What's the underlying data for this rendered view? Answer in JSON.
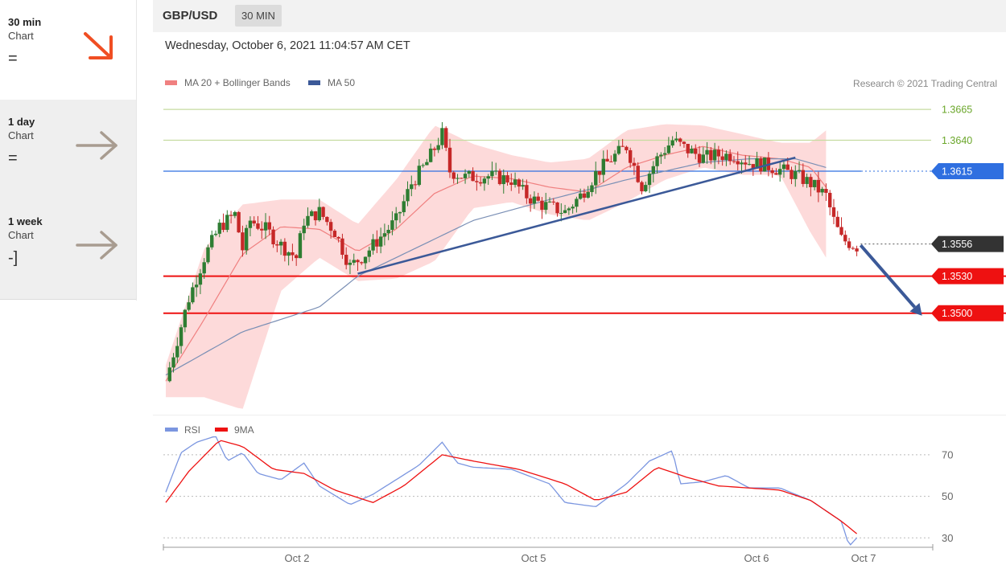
{
  "sidebar": {
    "timeframes": [
      {
        "label": "30 min",
        "sub": "Chart",
        "symbol": "=",
        "arrow": "down-right-arrow-icon",
        "arrow_color": "#f04e23"
      },
      {
        "label": "1 day",
        "sub": "Chart",
        "symbol": "=",
        "arrow": "right-arrow-icon",
        "arrow_color": "#a89c90"
      },
      {
        "label": "1 week",
        "sub": "Chart",
        "symbol": "-]",
        "arrow": "right-arrow-icon",
        "arrow_color": "#a89c90"
      }
    ]
  },
  "header": {
    "pair": "GBP/USD",
    "timeframe": "30 MIN",
    "datetime": "Wednesday, October 6, 2021 11:04:57 AM CET"
  },
  "colors": {
    "up_candle": "#2e7d32",
    "down_candle": "#c62828",
    "bb_fill": "#fdd6d6",
    "ma20": "#f08080",
    "ma50": "#7a8fb5",
    "trendline": "#3b5998",
    "support": "#ee1111",
    "current": "#333333",
    "resistance_green": "#c6dca0",
    "pivot_blue": "#2f6fe0",
    "rsi": "#7b96e0",
    "rsi_ma": "#ee1111"
  },
  "chart_data": [
    {
      "type": "candlestick",
      "title": "GBP/USD 30 MIN",
      "legend": [
        {
          "name": "MA 20 + Bollinger Bands",
          "color": "#f08080"
        },
        {
          "name": "MA 50",
          "color": "#3b5998"
        }
      ],
      "credit": "Research © 2021 Trading Central",
      "x_labels": [
        "Oct 2",
        "Oct 5",
        "Oct 6",
        "Oct 7"
      ],
      "ylim": [
        1.3425,
        1.3695
      ],
      "levels": [
        {
          "label": "1.3665",
          "value": 1.3665,
          "style": "resistance_green",
          "boxed": false
        },
        {
          "label": "1.3640",
          "value": 1.364,
          "style": "resistance_green",
          "boxed": false
        },
        {
          "label": "1.3615",
          "value": 1.3615,
          "style": "pivot_blue",
          "boxed": true
        },
        {
          "label": "1.3556",
          "value": 1.3556,
          "style": "current",
          "boxed": true
        },
        {
          "label": "1.3530",
          "value": 1.353,
          "style": "support",
          "boxed": true
        },
        {
          "label": "1.3500",
          "value": 1.35,
          "style": "support",
          "boxed": true
        }
      ],
      "trendline": {
        "from": [
          0.25,
          1.3532
        ],
        "to": [
          0.82,
          1.3626
        ]
      },
      "forecast_arrow": {
        "from": [
          0.905,
          1.3555
        ],
        "to": [
          0.985,
          1.3498
        ]
      },
      "close_path": [
        [
          0.0,
          1.3445
        ],
        [
          0.03,
          1.3512
        ],
        [
          0.05,
          1.3545
        ],
        [
          0.07,
          1.357
        ],
        [
          0.09,
          1.358
        ],
        [
          0.1,
          1.3552
        ],
        [
          0.11,
          1.3575
        ],
        [
          0.13,
          1.3568
        ],
        [
          0.15,
          1.3555
        ],
        [
          0.17,
          1.3545
        ],
        [
          0.18,
          1.3575
        ],
        [
          0.2,
          1.3582
        ],
        [
          0.22,
          1.3566
        ],
        [
          0.24,
          1.3538
        ],
        [
          0.26,
          1.3548
        ],
        [
          0.28,
          1.3562
        ],
        [
          0.3,
          1.3575
        ],
        [
          0.32,
          1.3605
        ],
        [
          0.34,
          1.3622
        ],
        [
          0.36,
          1.3645
        ],
        [
          0.37,
          1.3615
        ],
        [
          0.39,
          1.361
        ],
        [
          0.42,
          1.3611
        ],
        [
          0.45,
          1.3608
        ],
        [
          0.47,
          1.3595
        ],
        [
          0.49,
          1.3588
        ],
        [
          0.52,
          1.3582
        ],
        [
          0.54,
          1.3595
        ],
        [
          0.56,
          1.3613
        ],
        [
          0.58,
          1.3625
        ],
        [
          0.6,
          1.3635
        ],
        [
          0.62,
          1.3603
        ],
        [
          0.64,
          1.3625
        ],
        [
          0.66,
          1.364
        ],
        [
          0.68,
          1.3632
        ],
        [
          0.7,
          1.3626
        ],
        [
          0.72,
          1.3628
        ],
        [
          0.74,
          1.3628
        ],
        [
          0.76,
          1.3622
        ],
        [
          0.78,
          1.362
        ],
        [
          0.8,
          1.3616
        ],
        [
          0.82,
          1.3612
        ],
        [
          0.84,
          1.3605
        ],
        [
          0.86,
          1.3595
        ],
        [
          0.87,
          1.3575
        ],
        [
          0.88,
          1.356
        ],
        [
          0.9,
          1.3554
        ]
      ],
      "ma50_path": [
        [
          0.0,
          1.345
        ],
        [
          0.1,
          1.3485
        ],
        [
          0.2,
          1.3505
        ],
        [
          0.25,
          1.353
        ],
        [
          0.3,
          1.3545
        ],
        [
          0.4,
          1.3575
        ],
        [
          0.5,
          1.3592
        ],
        [
          0.6,
          1.3608
        ],
        [
          0.7,
          1.3622
        ],
        [
          0.76,
          1.3625
        ],
        [
          0.82,
          1.3625
        ],
        [
          0.86,
          1.3618
        ]
      ],
      "ma20_path": [
        [
          0.0,
          1.3445
        ],
        [
          0.05,
          1.3495
        ],
        [
          0.1,
          1.3548
        ],
        [
          0.15,
          1.357
        ],
        [
          0.2,
          1.3568
        ],
        [
          0.25,
          1.355
        ],
        [
          0.3,
          1.3568
        ],
        [
          0.35,
          1.3597
        ],
        [
          0.4,
          1.3611
        ],
        [
          0.45,
          1.3609
        ],
        [
          0.5,
          1.3602
        ],
        [
          0.55,
          1.3598
        ],
        [
          0.6,
          1.3618
        ],
        [
          0.65,
          1.3628
        ],
        [
          0.7,
          1.3635
        ],
        [
          0.75,
          1.3628
        ],
        [
          0.8,
          1.3625
        ],
        [
          0.84,
          1.3618
        ],
        [
          0.86,
          1.3602
        ]
      ],
      "bb_upper_path": [
        [
          0.0,
          1.3458
        ],
        [
          0.05,
          1.3552
        ],
        [
          0.1,
          1.3588
        ],
        [
          0.15,
          1.3592
        ],
        [
          0.2,
          1.3592
        ],
        [
          0.25,
          1.3572
        ],
        [
          0.3,
          1.3608
        ],
        [
          0.35,
          1.3652
        ],
        [
          0.4,
          1.3637
        ],
        [
          0.45,
          1.3628
        ],
        [
          0.5,
          1.3622
        ],
        [
          0.55,
          1.3625
        ],
        [
          0.6,
          1.3648
        ],
        [
          0.65,
          1.3653
        ],
        [
          0.7,
          1.3652
        ],
        [
          0.75,
          1.3645
        ],
        [
          0.8,
          1.3638
        ],
        [
          0.84,
          1.3638
        ],
        [
          0.86,
          1.3648
        ]
      ],
      "bb_lower_path": [
        [
          0.0,
          1.3432
        ],
        [
          0.05,
          1.3432
        ],
        [
          0.1,
          1.3422
        ],
        [
          0.15,
          1.3518
        ],
        [
          0.2,
          1.3545
        ],
        [
          0.25,
          1.3526
        ],
        [
          0.3,
          1.3528
        ],
        [
          0.35,
          1.3542
        ],
        [
          0.4,
          1.3585
        ],
        [
          0.45,
          1.359
        ],
        [
          0.5,
          1.358
        ],
        [
          0.55,
          1.3575
        ],
        [
          0.6,
          1.359
        ],
        [
          0.65,
          1.3608
        ],
        [
          0.7,
          1.3618
        ],
        [
          0.75,
          1.3612
        ],
        [
          0.8,
          1.3612
        ],
        [
          0.84,
          1.3565
        ],
        [
          0.86,
          1.3545
        ]
      ]
    },
    {
      "type": "line",
      "title": "RSI",
      "series": [
        {
          "name": "RSI",
          "color": "#7b96e0"
        },
        {
          "name": "9MA",
          "color": "#ee1111"
        }
      ],
      "y_ticks": [
        30,
        50,
        70
      ],
      "ylim": [
        22,
        80
      ],
      "rsi_path": [
        [
          0.0,
          52
        ],
        [
          0.02,
          71
        ],
        [
          0.04,
          76
        ],
        [
          0.065,
          79
        ],
        [
          0.08,
          67
        ],
        [
          0.1,
          71
        ],
        [
          0.12,
          61
        ],
        [
          0.15,
          58
        ],
        [
          0.18,
          66
        ],
        [
          0.2,
          55
        ],
        [
          0.24,
          46
        ],
        [
          0.27,
          51
        ],
        [
          0.3,
          58
        ],
        [
          0.33,
          65
        ],
        [
          0.36,
          76
        ],
        [
          0.38,
          66
        ],
        [
          0.4,
          64
        ],
        [
          0.45,
          63
        ],
        [
          0.5,
          56
        ],
        [
          0.52,
          47
        ],
        [
          0.56,
          45
        ],
        [
          0.6,
          56
        ],
        [
          0.63,
          67
        ],
        [
          0.66,
          72
        ],
        [
          0.67,
          56
        ],
        [
          0.7,
          57
        ],
        [
          0.73,
          60
        ],
        [
          0.76,
          54
        ],
        [
          0.8,
          54
        ],
        [
          0.84,
          48
        ],
        [
          0.86,
          43
        ],
        [
          0.88,
          38
        ],
        [
          0.89,
          26
        ],
        [
          0.9,
          30
        ]
      ],
      "ma_path": [
        [
          0.0,
          47
        ],
        [
          0.03,
          62
        ],
        [
          0.07,
          77
        ],
        [
          0.1,
          74
        ],
        [
          0.14,
          63
        ],
        [
          0.18,
          61
        ],
        [
          0.22,
          53
        ],
        [
          0.27,
          47
        ],
        [
          0.31,
          55
        ],
        [
          0.36,
          70
        ],
        [
          0.4,
          67
        ],
        [
          0.46,
          63
        ],
        [
          0.52,
          56
        ],
        [
          0.56,
          48
        ],
        [
          0.6,
          52
        ],
        [
          0.64,
          64
        ],
        [
          0.68,
          59
        ],
        [
          0.72,
          55
        ],
        [
          0.76,
          54
        ],
        [
          0.8,
          53
        ],
        [
          0.84,
          48
        ],
        [
          0.88,
          38
        ],
        [
          0.9,
          32
        ]
      ]
    }
  ]
}
